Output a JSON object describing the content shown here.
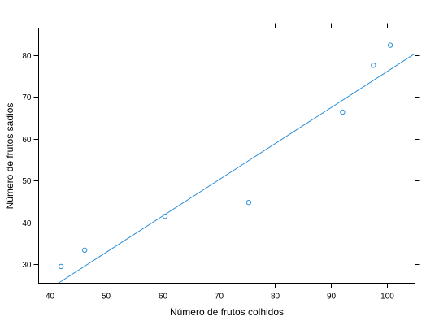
{
  "chart_data": {
    "type": "scatter",
    "title": "",
    "xlabel": "Número de frutos colhidos",
    "ylabel": "Número de frutos sadios",
    "xlim": [
      38,
      105
    ],
    "ylim": [
      25.5,
      86.5
    ],
    "x_ticks": [
      40,
      50,
      60,
      70,
      80,
      90,
      100
    ],
    "y_ticks": [
      30,
      40,
      50,
      60,
      70,
      80
    ],
    "grid": false,
    "legend": "none",
    "series": [
      {
        "marker": "open-circle",
        "color": "#2b8fd8",
        "points": [
          {
            "x": 42.0,
            "y": 29.5
          },
          {
            "x": 46.2,
            "y": 33.4
          },
          {
            "x": 60.5,
            "y": 41.5
          },
          {
            "x": 75.4,
            "y": 44.8
          },
          {
            "x": 92.1,
            "y": 66.4
          },
          {
            "x": 97.6,
            "y": 77.6
          },
          {
            "x": 100.6,
            "y": 82.4
          }
        ]
      }
    ],
    "fit_line": {
      "color": "#2b8fd8",
      "from": {
        "x": 41.5,
        "y": 25.5
      },
      "to": {
        "x": 105,
        "y": 80.4
      }
    }
  }
}
